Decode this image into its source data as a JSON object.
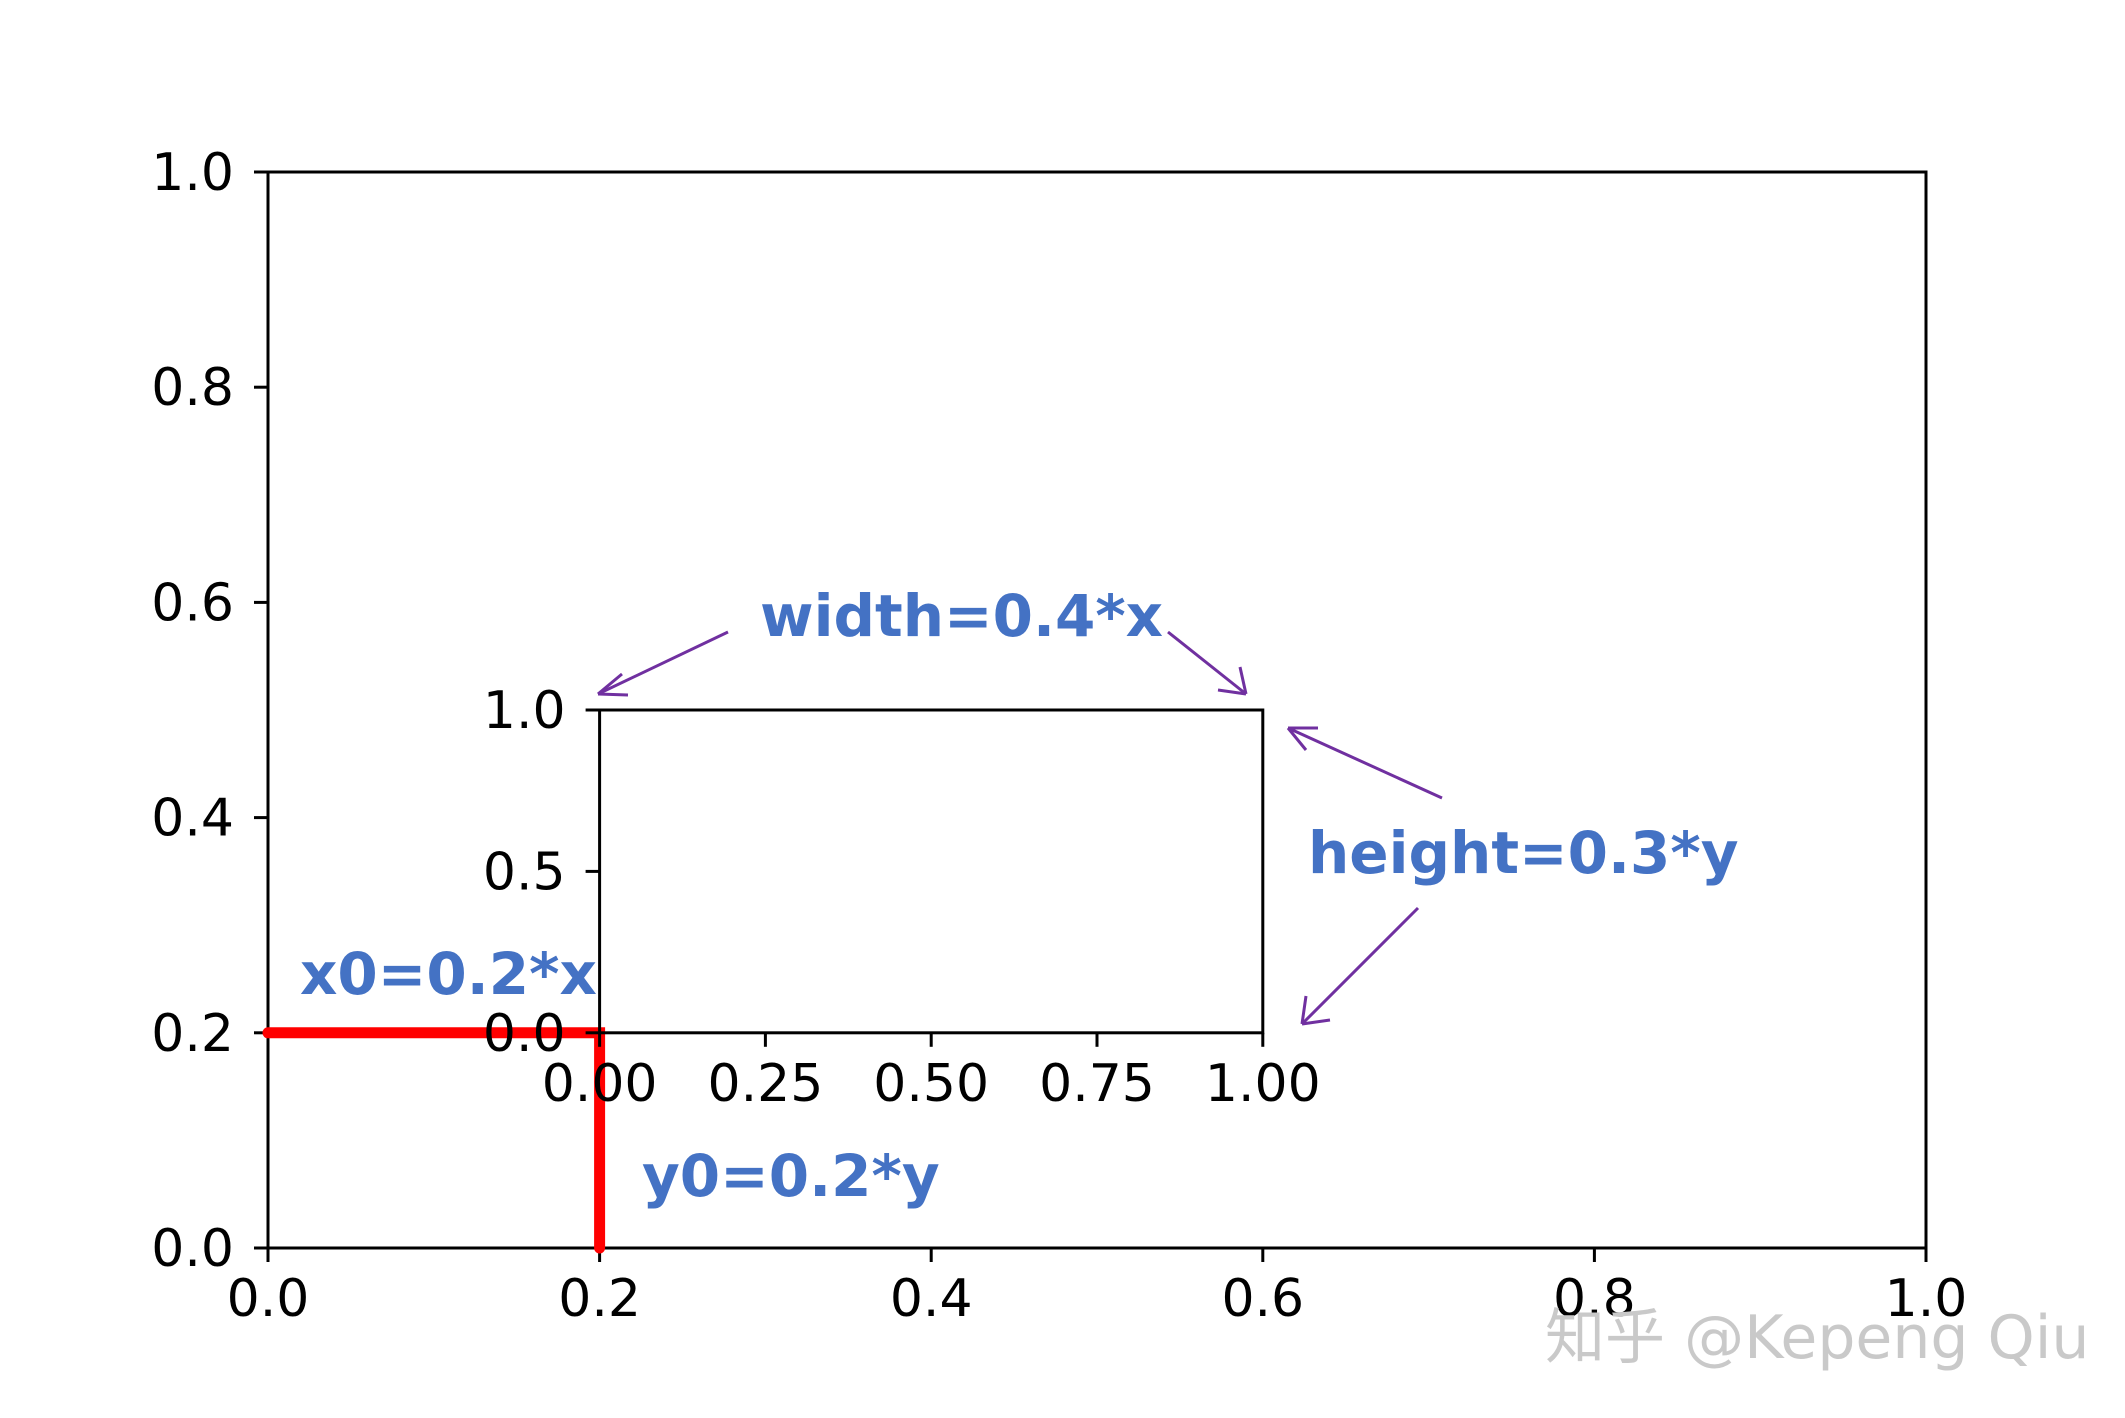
{
  "chart_data": [
    {
      "type": "line",
      "role": "outer axes",
      "xlim": [
        0.0,
        1.0
      ],
      "ylim": [
        0.0,
        1.0
      ],
      "xticks": [
        "0.0",
        "0.2",
        "0.4",
        "0.6",
        "0.8",
        "1.0"
      ],
      "yticks": [
        "0.0",
        "0.2",
        "0.4",
        "0.6",
        "0.8",
        "1.0"
      ],
      "grid": false,
      "series": [
        {
          "x": [
            0.0,
            0.2,
            0.2
          ],
          "y": [
            0.2,
            0.2,
            0.0
          ],
          "color": "#ff0000"
        }
      ]
    },
    {
      "type": "line",
      "role": "inset axes",
      "position": {
        "x0": 0.2,
        "y0": 0.2,
        "width": 0.4,
        "height": 0.3
      },
      "xlim": [
        0.0,
        1.0
      ],
      "ylim": [
        0.0,
        1.0
      ],
      "xticks": [
        "0.00",
        "0.25",
        "0.50",
        "0.75",
        "1.00"
      ],
      "yticks": [
        "0.0",
        "0.5",
        "1.0"
      ],
      "grid": false,
      "series": []
    }
  ],
  "annotations": {
    "width": "width=0.4*x",
    "height": "height=0.3*y",
    "x0": "x0=0.2*x",
    "y0": "y0=0.2*y"
  },
  "watermark": "知乎 @Kepeng Qiu",
  "colors": {
    "annotation_text": "#4472c4",
    "arrow": "#7030a0",
    "highlight_line": "#ff0000",
    "axes": "#000000"
  }
}
